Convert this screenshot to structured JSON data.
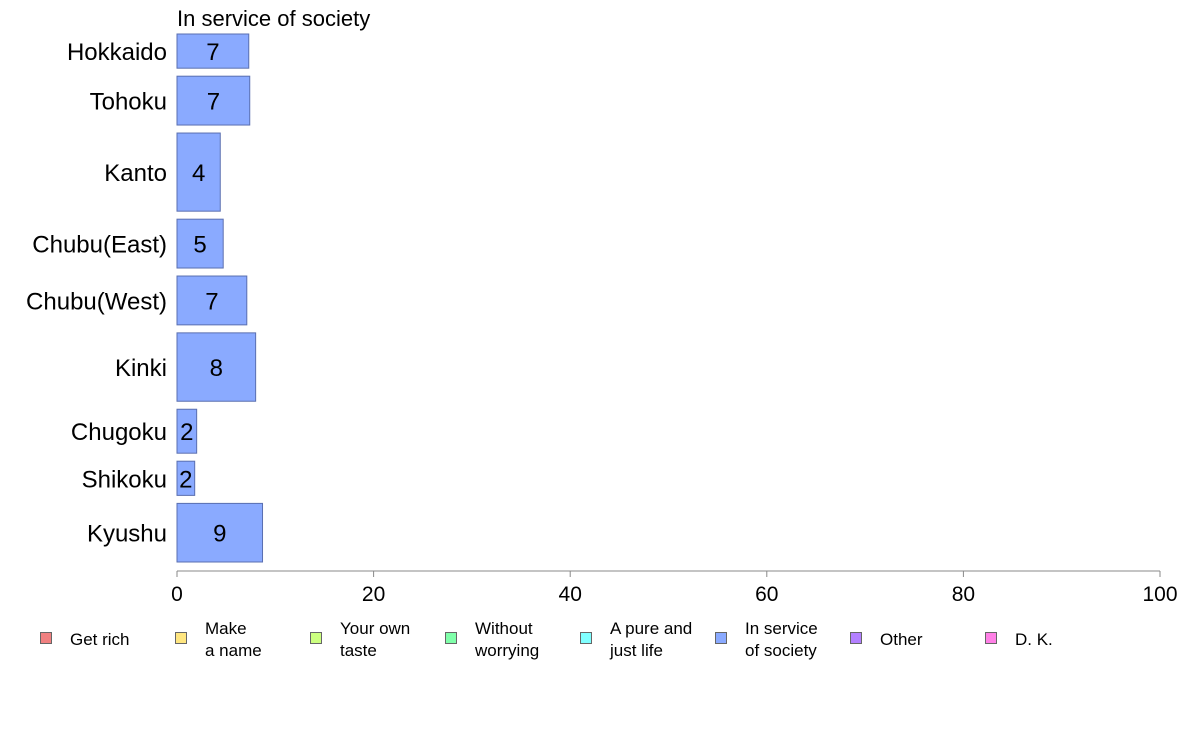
{
  "chart_data": {
    "type": "bar",
    "orientation": "horizontal",
    "title": "In service of society",
    "categories": [
      "Hokkaido",
      "Tohoku",
      "Kanto",
      "Chubu(East)",
      "Chubu(West)",
      "Kinki",
      "Chugoku",
      "Shikoku",
      "Kyushu"
    ],
    "values": [
      7.3,
      7.4,
      4.4,
      4.7,
      7.1,
      8.0,
      2.0,
      1.8,
      8.7
    ],
    "data_labels": [
      "7",
      "7",
      "4",
      "5",
      "7",
      "8",
      "2",
      "2",
      "9"
    ],
    "relative_band_widths": [
      0.7,
      1.0,
      1.6,
      1.0,
      1.0,
      1.4,
      0.9,
      0.7,
      1.2
    ],
    "bar_color": "#8aaaff",
    "bar_edge_color": "#5a6fb0",
    "xlim": [
      0,
      100
    ],
    "xticks": [
      "0",
      "20",
      "40",
      "60",
      "80",
      "100"
    ],
    "xlabel": "",
    "ylabel": "",
    "grid": false,
    "legend_position": "bottom"
  },
  "legend": {
    "items": [
      {
        "label": "Get rich",
        "color": "#f08080"
      },
      {
        "label": "Make\na name",
        "color": "#ffe680"
      },
      {
        "label": "Your own\ntaste",
        "color": "#ccff80"
      },
      {
        "label": "Without\nworrying",
        "color": "#80ffaa"
      },
      {
        "label": "A pure and\njust life",
        "color": "#80ffff"
      },
      {
        "label": "In service\nof society",
        "color": "#8aaaff"
      },
      {
        "label": "Other",
        "color": "#b380ff"
      },
      {
        "label": "D. K.",
        "color": "#ff80e6"
      }
    ]
  }
}
